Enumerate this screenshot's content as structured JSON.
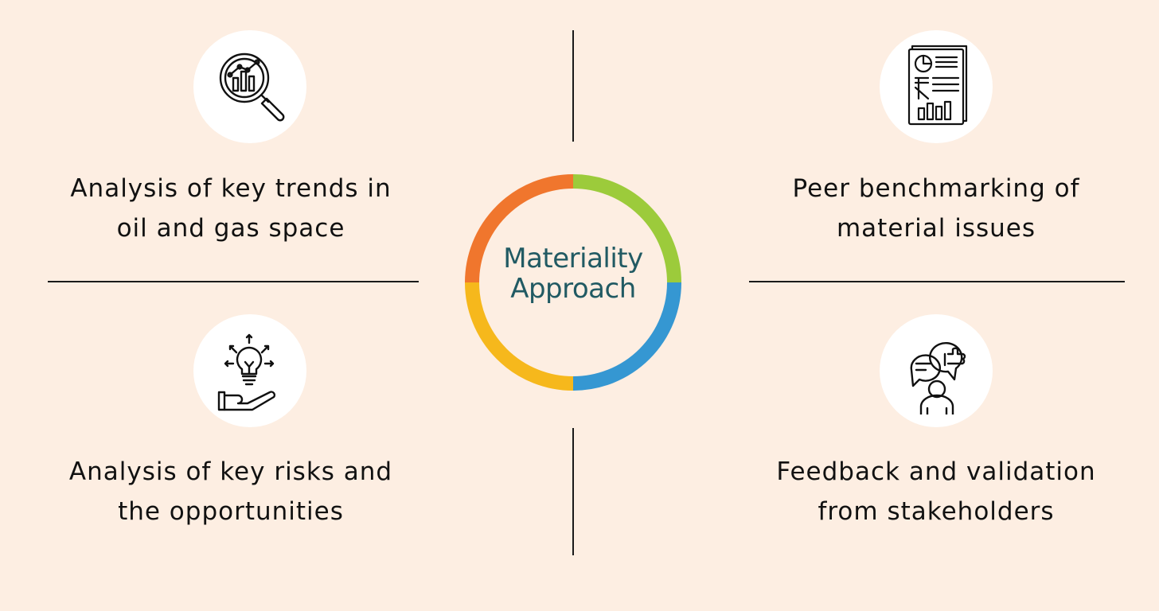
{
  "center": {
    "line1": "Materiality",
    "line2": "Approach"
  },
  "ring_colors": [
    "#9ccb3b",
    "#3597d2",
    "#f6b81c",
    "#f0762d"
  ],
  "quadrants": [
    {
      "icon": "magnifier-chart-icon",
      "line1": "Analysis of key trends in",
      "line2": "oil and gas space"
    },
    {
      "icon": "financial-report-icon",
      "line1": "Peer benchmarking of",
      "line2": "material issues"
    },
    {
      "icon": "lightbulb-hand-icon",
      "line1": "Analysis of key risks and",
      "line2": "the opportunities"
    },
    {
      "icon": "stakeholder-feedback-icon",
      "line1": "Feedback and validation",
      "line2": "from stakeholders"
    }
  ]
}
